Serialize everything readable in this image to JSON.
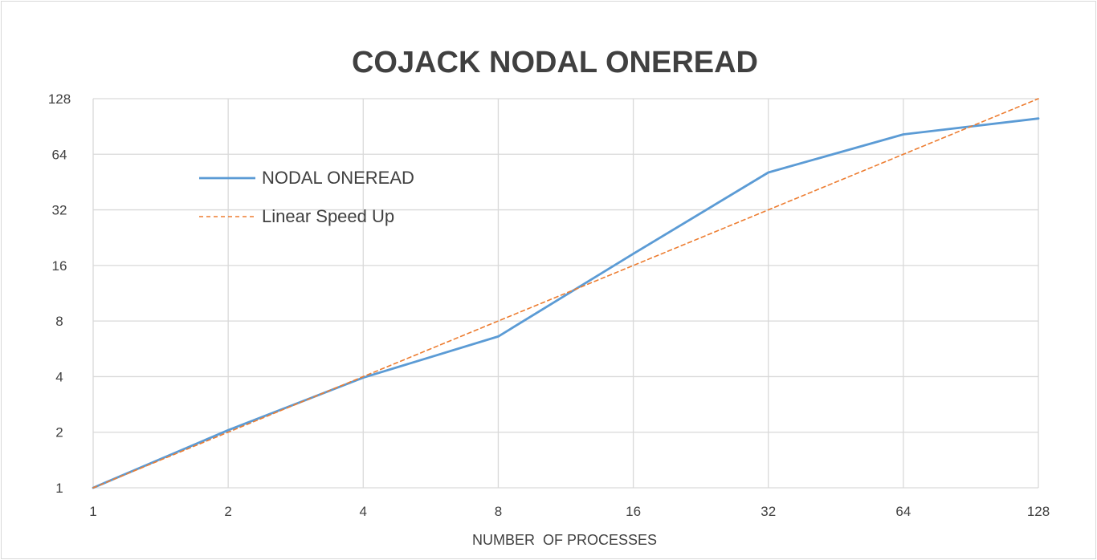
{
  "chart_data": {
    "type": "line",
    "title": "COJACK NODAL ONEREAD",
    "xlabel": "NUMBER  OF PROCESSES",
    "ylabel": "",
    "x_scale": "log2",
    "y_scale": "log2",
    "x_ticks": [
      "1",
      "2",
      "4",
      "8",
      "16",
      "32",
      "64",
      "128"
    ],
    "y_ticks": [
      "1",
      "2",
      "4",
      "8",
      "16",
      "32",
      "64",
      "128"
    ],
    "xlim": [
      1,
      128
    ],
    "ylim": [
      1,
      128
    ],
    "grid": true,
    "legend_position": "upper-left",
    "series": [
      {
        "name": "NODAL ONEREAD",
        "style": "solid",
        "color": "#5b9bd5",
        "x": [
          1,
          2,
          4,
          8,
          16,
          32,
          64,
          128
        ],
        "y": [
          1,
          2.05,
          3.95,
          6.6,
          18.5,
          51,
          82,
          100
        ]
      },
      {
        "name": "Linear Speed Up",
        "style": "dashed",
        "color": "#ed7d31",
        "x": [
          1,
          2,
          4,
          8,
          16,
          32,
          64,
          128
        ],
        "y": [
          1,
          2,
          4,
          8,
          16,
          32,
          64,
          128
        ]
      }
    ]
  }
}
